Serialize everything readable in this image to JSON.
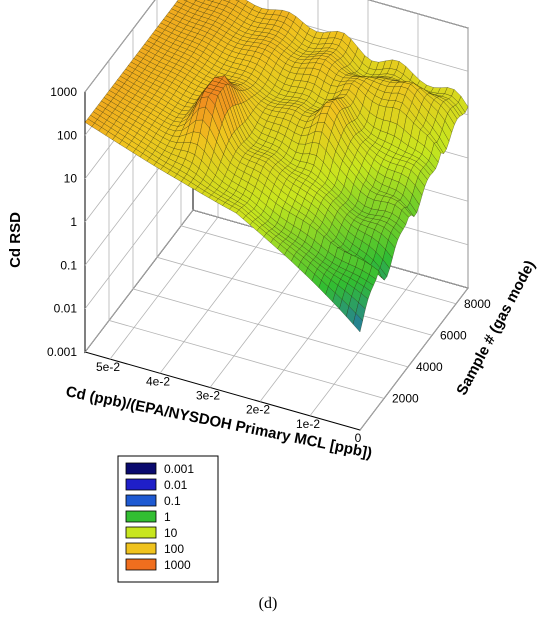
{
  "chart_data": {
    "type": "surface3d",
    "title": "",
    "xlabel": "Cd (ppb)/(EPA/NYSDOH Primary MCL [ppb])",
    "ylabel": "Sample # (gas mode)",
    "zlabel": "Cd RSD",
    "z_scale": "log",
    "zlim": [
      0.001,
      1000
    ],
    "xlim": [
      0,
      0.055
    ],
    "ylim": [
      0,
      9000
    ],
    "x_ticks": [
      "5e-2",
      "4e-2",
      "3e-2",
      "2e-2",
      "1e-2",
      "0"
    ],
    "y_ticks": [
      "2000",
      "4000",
      "6000",
      "8000"
    ],
    "z_ticks": [
      "0.001",
      "0.01",
      "0.1",
      "1",
      "10",
      "100",
      "1000"
    ],
    "grid": true,
    "legend": {
      "position": "bottom-left",
      "entries": [
        {
          "label": "0.001",
          "color": "#0a0a6e"
        },
        {
          "label": "0.01",
          "color": "#1f1fc8"
        },
        {
          "label": "0.1",
          "color": "#1e5ad2"
        },
        {
          "label": "1",
          "color": "#32be32"
        },
        {
          "label": "10",
          "color": "#c8e61e"
        },
        {
          "label": "100",
          "color": "#f0c31e"
        },
        {
          "label": "1000",
          "color": "#f06e1e"
        }
      ]
    },
    "panel_label": "(d)"
  }
}
